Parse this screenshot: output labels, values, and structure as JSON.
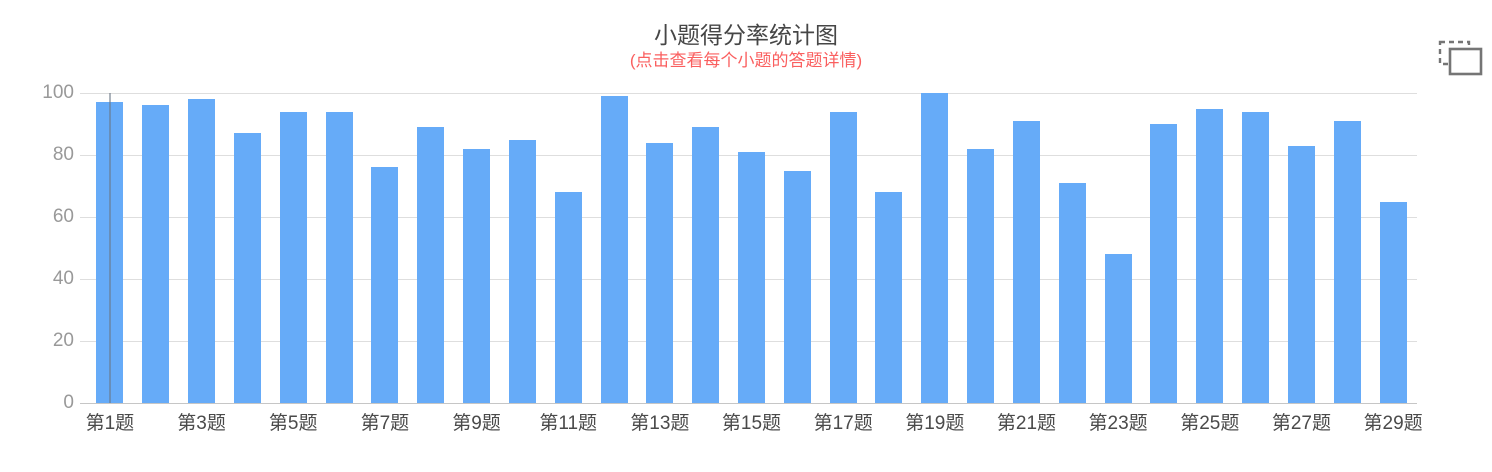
{
  "chart": {
    "title": "小题得分率统计图",
    "subtitle": "(点击查看每个小题的答题详情)",
    "title_color": "#464646",
    "subtitle_color": "#fa5f5f",
    "bar_color": "#66abf8",
    "gridline_color": "#dedede",
    "y_label_color": "#999999",
    "x_label_color": "#4a4a4a",
    "toolbox_icon": "restore-frame-icon",
    "toolbox_icon_color": "#757575"
  },
  "chart_data": {
    "type": "bar",
    "title": "小题得分率统计图",
    "subtitle": "(点击查看每个小题的答题详情)",
    "categories": [
      "第1题",
      "第2题",
      "第3题",
      "第4题",
      "第5题",
      "第6题",
      "第7题",
      "第8题",
      "第9题",
      "第10题",
      "第11题",
      "第12题",
      "第13题",
      "第14题",
      "第15题",
      "第16题",
      "第17题",
      "第18题",
      "第19题",
      "第20题",
      "第21题",
      "第22题",
      "第23题",
      "第24题",
      "第25题",
      "第26题",
      "第27题",
      "第28题",
      "第29题"
    ],
    "values": [
      97,
      96,
      98,
      87,
      94,
      94,
      76,
      89,
      82,
      85,
      68,
      99,
      84,
      89,
      81,
      75,
      94,
      68,
      100,
      82,
      91,
      71,
      48,
      90,
      95,
      94,
      83,
      91,
      65
    ],
    "series_name": "得分率",
    "xlabel": "",
    "ylabel": "",
    "ylim": [
      0,
      100
    ],
    "y_ticks": [
      0,
      20,
      40,
      60,
      80,
      100
    ],
    "x_tick_labels_shown": [
      "第1题",
      "第3题",
      "第5题",
      "第7题",
      "第9题",
      "第11题",
      "第13题",
      "第15题",
      "第17题",
      "第19题",
      "第21题",
      "第23题",
      "第25题",
      "第27题",
      "第29题"
    ],
    "x_label_interval": 2,
    "grid": true,
    "legend": false,
    "bar_color": "#66abf8",
    "axis_pointer_on_category": "第1题"
  }
}
